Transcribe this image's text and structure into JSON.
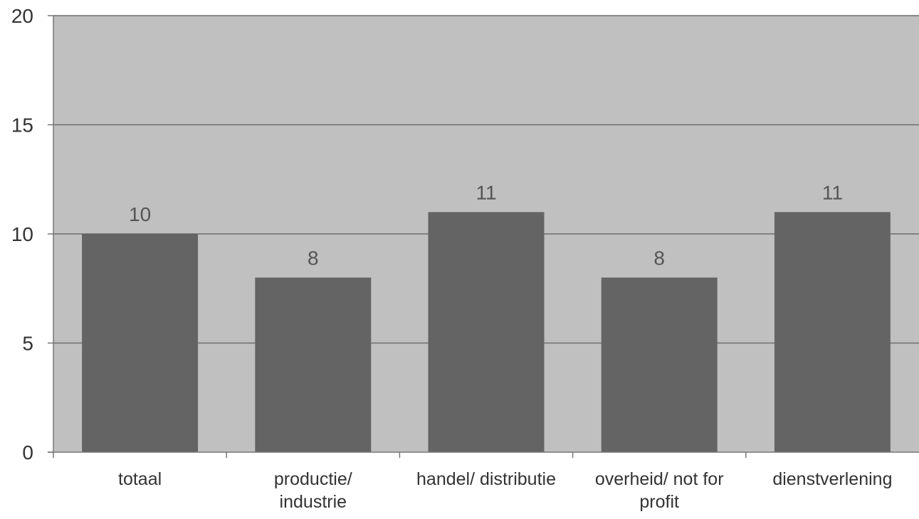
{
  "chart_data": {
    "type": "bar",
    "categories": [
      "totaal",
      "productie/ industrie",
      "handel/ distributie",
      "overheid/ not for profit",
      "dienstverlening"
    ],
    "category_lines": [
      [
        "totaal"
      ],
      [
        "productie/",
        "industrie"
      ],
      [
        "handel/ distributie"
      ],
      [
        "overheid/ not for",
        "profit"
      ],
      [
        "dienstverlening"
      ]
    ],
    "values": [
      10,
      8,
      11,
      8,
      11
    ],
    "data_labels": [
      "10",
      "8",
      "11",
      "8",
      "11"
    ],
    "ylim": [
      0,
      20
    ],
    "yticks": [
      0,
      5,
      10,
      15,
      20
    ],
    "ytick_labels": [
      "0",
      "5",
      "10",
      "15",
      "20"
    ],
    "grid": true,
    "legend": "none",
    "title": "",
    "xlabel": "",
    "ylabel": "",
    "colors": {
      "plot_background": "#c0c0c0",
      "bar": "#646464",
      "gridline": "#6e6e6e",
      "axis": "#777777",
      "text": "#333333",
      "data_label": "#555555"
    }
  }
}
